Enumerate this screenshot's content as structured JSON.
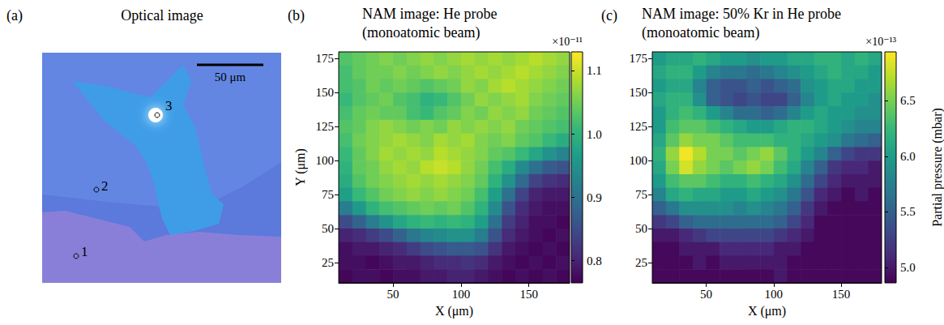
{
  "chart_data": [
    {
      "type": "image",
      "panel": "(a)",
      "title": "Optical image",
      "point_labels": [
        "1",
        "2",
        "3"
      ],
      "scale_bar": "50 μm"
    },
    {
      "type": "heatmap",
      "panel": "(b)",
      "title": "NAM image: He probe\n(monoatomic beam)",
      "xlabel": "X (μm)",
      "ylabel": "Y (μm)",
      "xlim": [
        10,
        180
      ],
      "ylim": [
        10,
        180
      ],
      "xticks": [
        50,
        100,
        150
      ],
      "yticks": [
        25,
        50,
        75,
        100,
        125,
        150,
        175
      ],
      "x": [
        15,
        25,
        35,
        45,
        55,
        65,
        75,
        85,
        95,
        105,
        115,
        125,
        135,
        145,
        155,
        165,
        175
      ],
      "y": [
        175,
        165,
        155,
        145,
        135,
        125,
        115,
        105,
        95,
        85,
        75,
        65,
        55,
        45,
        35,
        25,
        15
      ],
      "values": [
        [
          1.03,
          1.04,
          1.05,
          1.06,
          1.05,
          1.06,
          1.07,
          1.06,
          1.07,
          1.08,
          1.07,
          1.08,
          1.07,
          1.08,
          1.09,
          1.08,
          1.07
        ],
        [
          1.02,
          1.04,
          1.05,
          1.05,
          1.06,
          1.05,
          1.06,
          1.07,
          1.06,
          1.07,
          1.08,
          1.07,
          1.08,
          1.09,
          1.08,
          1.07,
          1.06
        ],
        [
          1.02,
          1.03,
          1.05,
          1.04,
          1.05,
          1.04,
          1.03,
          1.04,
          1.05,
          1.07,
          1.06,
          1.08,
          1.09,
          1.08,
          1.07,
          1.06,
          1.05
        ],
        [
          1.01,
          1.03,
          1.04,
          1.05,
          1.03,
          1.02,
          1.0,
          1.01,
          1.03,
          1.05,
          1.07,
          1.06,
          1.07,
          1.08,
          1.06,
          1.05,
          1.04
        ],
        [
          1.02,
          1.04,
          1.05,
          1.04,
          1.04,
          1.02,
          1.01,
          1.03,
          1.04,
          1.06,
          1.05,
          1.07,
          1.06,
          1.07,
          1.05,
          1.04,
          1.03
        ],
        [
          1.03,
          1.04,
          1.06,
          1.07,
          1.06,
          1.05,
          1.06,
          1.05,
          1.07,
          1.06,
          1.07,
          1.06,
          1.07,
          1.05,
          1.04,
          1.03,
          1.02
        ],
        [
          1.02,
          1.05,
          1.06,
          1.07,
          1.08,
          1.07,
          1.06,
          1.08,
          1.07,
          1.08,
          1.06,
          1.05,
          1.06,
          1.04,
          1.03,
          1.01,
          0.99
        ],
        [
          1.01,
          1.04,
          1.06,
          1.08,
          1.07,
          1.08,
          1.07,
          1.09,
          1.08,
          1.07,
          1.06,
          1.04,
          1.03,
          1.01,
          0.98,
          0.95,
          0.93
        ],
        [
          1.0,
          1.04,
          1.05,
          1.07,
          1.08,
          1.07,
          1.09,
          1.1,
          1.09,
          1.07,
          1.05,
          1.02,
          0.99,
          0.94,
          0.9,
          0.87,
          0.86
        ],
        [
          0.99,
          1.03,
          1.05,
          1.06,
          1.07,
          1.08,
          1.07,
          1.08,
          1.07,
          1.06,
          1.04,
          1.0,
          0.95,
          0.89,
          0.84,
          0.82,
          0.81
        ],
        [
          0.97,
          1.01,
          1.03,
          1.05,
          1.06,
          1.07,
          1.06,
          1.07,
          1.06,
          1.05,
          1.02,
          0.97,
          0.9,
          0.84,
          0.8,
          0.79,
          0.79
        ],
        [
          0.92,
          0.96,
          1.0,
          1.02,
          1.03,
          1.04,
          1.05,
          1.04,
          1.05,
          1.03,
          1.0,
          0.94,
          0.86,
          0.81,
          0.79,
          0.78,
          0.78
        ],
        [
          0.85,
          0.88,
          0.92,
          0.95,
          0.98,
          1.0,
          1.01,
          1.0,
          1.01,
          1.0,
          0.97,
          0.9,
          0.83,
          0.8,
          0.78,
          0.78,
          0.77
        ],
        [
          0.8,
          0.81,
          0.83,
          0.85,
          0.88,
          0.91,
          0.93,
          0.94,
          0.95,
          0.95,
          0.92,
          0.86,
          0.81,
          0.79,
          0.78,
          0.77,
          0.78
        ],
        [
          0.78,
          0.79,
          0.79,
          0.8,
          0.81,
          0.83,
          0.85,
          0.86,
          0.87,
          0.87,
          0.86,
          0.82,
          0.79,
          0.78,
          0.77,
          0.78,
          0.77
        ],
        [
          0.78,
          0.78,
          0.77,
          0.78,
          0.79,
          0.79,
          0.8,
          0.81,
          0.81,
          0.82,
          0.81,
          0.79,
          0.78,
          0.77,
          0.78,
          0.77,
          0.78
        ],
        [
          0.77,
          0.78,
          0.78,
          0.77,
          0.78,
          0.78,
          0.79,
          0.79,
          0.8,
          0.8,
          0.79,
          0.78,
          0.77,
          0.78,
          0.77,
          0.78,
          0.77
        ]
      ],
      "colorbar": {
        "lim": [
          0.765,
          1.13
        ],
        "ticks": [
          0.8,
          0.9,
          {
            "value": 1,
            "label": "1.0"
          },
          1.1
        ],
        "offset_label": "×10⁻¹¹"
      }
    },
    {
      "type": "heatmap",
      "panel": "(c)",
      "title": "NAM image: 50% Kr in He probe\n(monoatomic beam)",
      "xlabel": "X (μm)",
      "xlim": [
        10,
        180
      ],
      "ylim": [
        10,
        180
      ],
      "xticks": [
        50,
        100,
        150
      ],
      "yticks": [
        25,
        50,
        75,
        100,
        125,
        150,
        175
      ],
      "x": [
        15,
        25,
        35,
        45,
        55,
        65,
        75,
        85,
        95,
        105,
        115,
        125,
        135,
        145,
        155,
        165,
        175
      ],
      "y": [
        175,
        165,
        155,
        145,
        135,
        125,
        115,
        105,
        95,
        85,
        75,
        65,
        55,
        45,
        35,
        25,
        15
      ],
      "values": [
        [
          6.0,
          6.1,
          6.1,
          6.2,
          6.1,
          6.0,
          6.0,
          5.9,
          6.0,
          6.0,
          6.1,
          6.1,
          6.2,
          6.2,
          6.1,
          6.2,
          6.1
        ],
        [
          6.1,
          6.2,
          6.2,
          6.0,
          5.8,
          5.7,
          5.7,
          5.6,
          5.7,
          5.8,
          5.9,
          6.0,
          6.1,
          6.2,
          6.1,
          6.1,
          6.0
        ],
        [
          6.0,
          6.1,
          6.1,
          5.8,
          5.5,
          5.4,
          5.4,
          5.5,
          5.4,
          5.5,
          5.6,
          5.9,
          6.0,
          6.1,
          6.1,
          6.0,
          6.0
        ],
        [
          6.1,
          6.2,
          6.2,
          5.9,
          5.5,
          5.4,
          5.3,
          5.4,
          5.3,
          5.3,
          5.5,
          5.8,
          6.0,
          6.1,
          6.0,
          6.0,
          5.9
        ],
        [
          6.0,
          6.2,
          6.3,
          6.2,
          6.0,
          5.8,
          5.6,
          5.6,
          5.5,
          5.6,
          5.8,
          6.0,
          6.1,
          6.0,
          6.0,
          5.9,
          5.9
        ],
        [
          6.0,
          6.3,
          6.4,
          6.4,
          6.3,
          6.2,
          6.1,
          6.0,
          6.0,
          6.1,
          6.2,
          6.2,
          6.1,
          6.0,
          5.9,
          5.8,
          5.8
        ],
        [
          6.1,
          6.4,
          6.6,
          6.5,
          6.5,
          6.4,
          6.3,
          6.3,
          6.3,
          6.2,
          6.2,
          6.1,
          6.0,
          5.9,
          5.7,
          5.6,
          5.5
        ],
        [
          6.2,
          6.6,
          6.9,
          6.7,
          6.5,
          6.5,
          6.4,
          6.5,
          6.6,
          6.4,
          6.2,
          6.0,
          5.8,
          5.5,
          5.3,
          5.2,
          5.2
        ],
        [
          6.1,
          6.5,
          6.8,
          6.6,
          6.5,
          6.4,
          6.5,
          6.6,
          6.5,
          6.3,
          6.1,
          5.8,
          5.5,
          5.2,
          5.1,
          5.1,
          5.0
        ],
        [
          6.0,
          6.3,
          6.4,
          6.4,
          6.3,
          6.2,
          6.2,
          6.3,
          6.2,
          6.1,
          5.9,
          5.6,
          5.3,
          5.1,
          5.0,
          5.0,
          5.0
        ],
        [
          5.8,
          6.1,
          6.2,
          6.1,
          6.1,
          6.0,
          6.0,
          6.1,
          6.0,
          5.9,
          5.7,
          5.4,
          5.1,
          5.0,
          4.9,
          5.0,
          4.9
        ],
        [
          5.5,
          5.7,
          5.9,
          5.9,
          5.9,
          5.9,
          5.8,
          5.9,
          5.8,
          5.7,
          5.5,
          5.2,
          5.0,
          4.9,
          4.9,
          4.9,
          4.9
        ],
        [
          5.2,
          5.3,
          5.5,
          5.6,
          5.6,
          5.6,
          5.6,
          5.6,
          5.6,
          5.5,
          5.3,
          5.1,
          4.9,
          4.9,
          4.9,
          4.9,
          4.9
        ],
        [
          5.0,
          5.0,
          5.1,
          5.2,
          5.3,
          5.3,
          5.3,
          5.3,
          5.3,
          5.2,
          5.1,
          5.0,
          4.9,
          4.9,
          4.9,
          4.9,
          4.9
        ],
        [
          4.9,
          4.9,
          5.0,
          5.0,
          5.0,
          5.1,
          5.1,
          5.1,
          5.1,
          5.0,
          5.0,
          4.9,
          4.9,
          4.9,
          4.9,
          4.9,
          4.9
        ],
        [
          4.9,
          4.9,
          4.9,
          5.0,
          4.9,
          5.0,
          5.0,
          5.0,
          5.0,
          5.0,
          4.9,
          4.9,
          4.9,
          4.9,
          4.9,
          4.9,
          4.9
        ],
        [
          4.9,
          4.9,
          4.9,
          4.9,
          4.9,
          4.9,
          4.9,
          4.9,
          4.9,
          5.0,
          4.9,
          4.9,
          4.9,
          4.9,
          4.9,
          4.9,
          4.9
        ]
      ],
      "colorbar": {
        "lim": [
          4.86,
          6.94
        ],
        "ticks": [
          {
            "value": 5,
            "label": "5.0"
          },
          5.5,
          {
            "value": 6,
            "label": "6.0"
          },
          6.5
        ],
        "offset_label": "×10⁻¹³",
        "label": "Partial pressure (mbar)"
      }
    }
  ]
}
